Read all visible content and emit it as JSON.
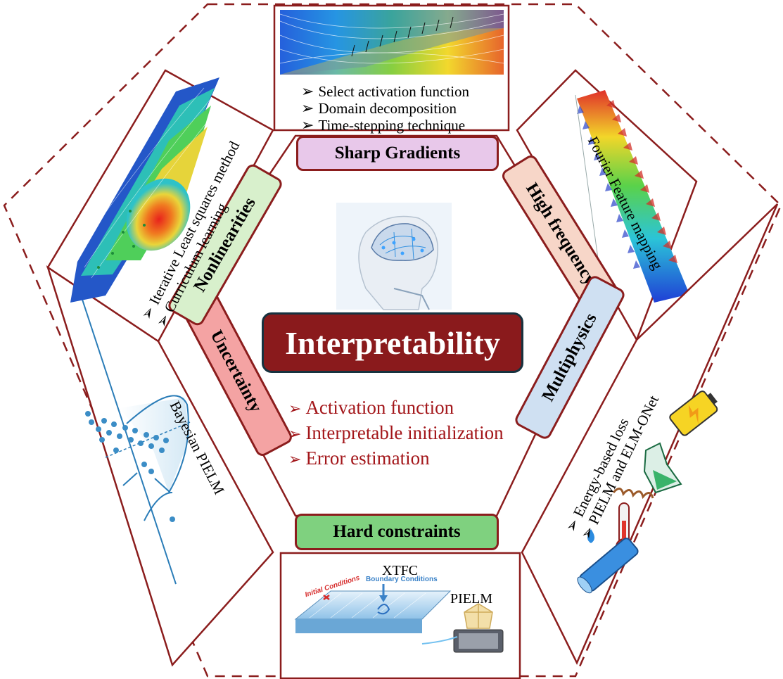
{
  "center": {
    "title": "Interpretability",
    "items": [
      "Activation function",
      "Interpretable initialization",
      "Error estimation"
    ]
  },
  "bullet": "➢",
  "tags": {
    "top": "Sharp Gradients",
    "upper_right": "High frequency",
    "lower_right": "Multiphysics",
    "bottom": "Hard constraints",
    "lower_left": "Uncertainty",
    "upper_left": "Nonlinearities"
  },
  "panels": {
    "top": {
      "items": [
        "Select activation function",
        "Domain decomposition",
        "Time-stepping technique"
      ]
    },
    "upper_right": {
      "items": [
        "Fourier Feature mapping"
      ]
    },
    "lower_right": {
      "items": [
        "Energy-based loss",
        "PIELM and ELM-ONet"
      ]
    },
    "bottom": {
      "label_top": "XTFC",
      "label_right": "PIELM",
      "label_initial": "Initial Conditions",
      "label_boundary": "Boundary Conditions"
    },
    "lower_left": {
      "items": [
        "Bayesian PIELM"
      ]
    },
    "upper_left": {
      "items": [
        "Iterative Least squares method",
        "Curriculum learning"
      ]
    }
  },
  "colors": {
    "frame": "#8b1d1d",
    "title_bg": "#8a1a1c",
    "sharp_gradients": "#e8c8ea",
    "high_frequency": "#f7d6c8",
    "multiphysics": "#cfe0f2",
    "hard_constraints": "#7fd17f",
    "uncertainty": "#f4a3a3",
    "nonlinearities": "#d8f0cc"
  }
}
